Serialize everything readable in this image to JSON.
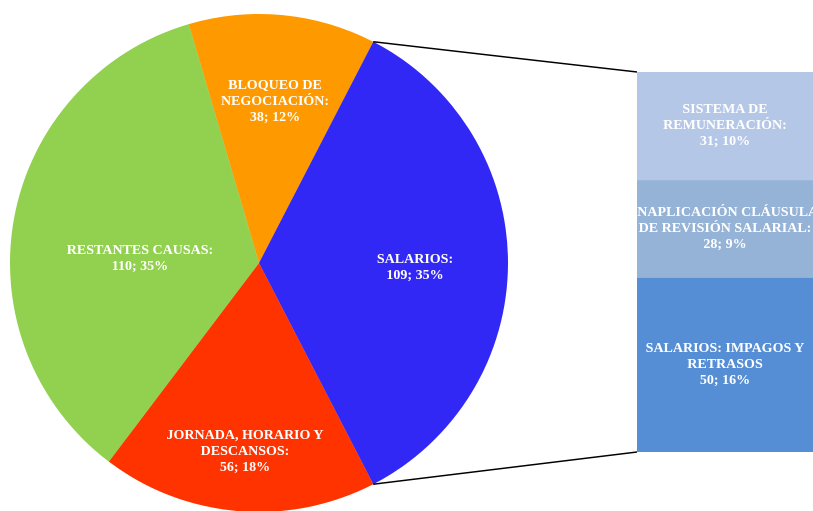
{
  "chart_data": {
    "type": "pie-of-bar",
    "categories": [
      "BLOQUEO DE NEGOCIACIÓN:",
      "SALARIOS:",
      "JORNADA, HORARIO Y DESCANSOS:",
      "RESTANTES CAUSAS:"
    ],
    "values": [
      38,
      109,
      56,
      110
    ],
    "value_labels": [
      "38; 12%",
      "109; 35%",
      "56; 18%",
      "110; 35%"
    ],
    "colors": [
      "#ff9900",
      "#3228f5",
      "#ff3300",
      "#92d050"
    ],
    "bar": {
      "categories": [
        "SISTEMA DE REMUNERACIÓN:",
        "INAPLICACIÓN CLÁUSULA DE REVISIÓN SALARIAL:",
        "SALARIOS: IMPAGOS Y RETRASOS"
      ],
      "values": [
        31,
        28,
        50
      ],
      "value_labels": [
        "31; 10%",
        "28; 9%",
        "50; 16%"
      ],
      "colors": [
        "#b4c7e7",
        "#95b3d7",
        "#558ed5"
      ]
    }
  }
}
